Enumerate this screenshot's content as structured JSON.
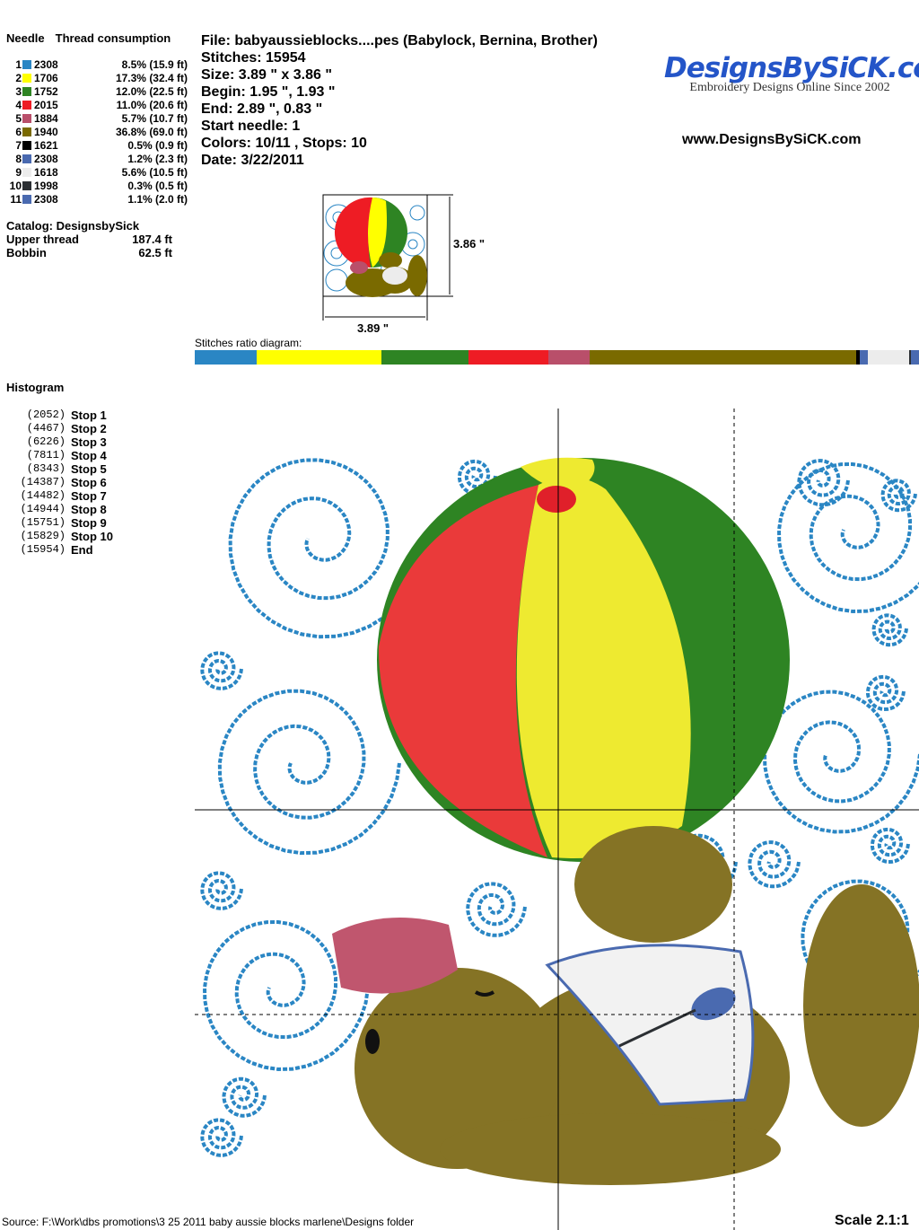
{
  "needles": {
    "header_needle": "Needle",
    "header_thread": "Thread consumption",
    "rows": [
      {
        "num": "1",
        "color": "#2a86c4",
        "code": "2308",
        "consumption": "8.5% (15.9 ft)",
        "pct": 8.5
      },
      {
        "num": "2",
        "color": "#ffff00",
        "code": "1706",
        "consumption": "17.3% (32.4 ft)",
        "pct": 17.3
      },
      {
        "num": "3",
        "color": "#2e8423",
        "code": "1752",
        "consumption": "12.0% (22.5 ft)",
        "pct": 12.0
      },
      {
        "num": "4",
        "color": "#ee1c24",
        "code": "2015",
        "consumption": "11.0% (20.6 ft)",
        "pct": 11.0
      },
      {
        "num": "5",
        "color": "#b94f6a",
        "code": "1884",
        "consumption": "5.7% (10.7 ft)",
        "pct": 5.7
      },
      {
        "num": "6",
        "color": "#7a6a00",
        "code": "1940",
        "consumption": "36.8% (69.0 ft)",
        "pct": 36.8
      },
      {
        "num": "7",
        "color": "#000000",
        "code": "1621",
        "consumption": "0.5% (0.9 ft)",
        "pct": 0.5
      },
      {
        "num": "8",
        "color": "#4a6ab0",
        "code": "2308",
        "consumption": "1.2% (2.3 ft)",
        "pct": 1.2
      },
      {
        "num": "9",
        "color": "#ececec",
        "code": "1618",
        "consumption": "5.6% (10.5 ft)",
        "pct": 5.6
      },
      {
        "num": "10",
        "color": "#2b2f33",
        "code": "1998",
        "consumption": "0.3% (0.5 ft)",
        "pct": 0.3
      },
      {
        "num": "11",
        "color": "#4a6ab0",
        "code": "2308",
        "consumption": "1.1% (2.0 ft)",
        "pct": 1.1
      }
    ]
  },
  "catalog": {
    "catalog_label": "Catalog: DesignsbySick",
    "upper_label": "Upper thread",
    "upper_value": "187.4 ft",
    "bobbin_label": "Bobbin",
    "bobbin_value": "62.5 ft"
  },
  "info": {
    "file": "File: babyaussieblocks....pes  (Babylock, Bernina, Brother)",
    "stitches": "Stitches: 15954",
    "size": "Size: 3.89 \" x 3.86 \"",
    "begin": "Begin: 1.95 \", 1.93 \"",
    "end": "End: 2.89 \", 0.83 \"",
    "start_needle": "Start needle: 1",
    "colors": "Colors: 10/11 , Stops: 10",
    "date": "Date: 3/22/2011"
  },
  "logo": {
    "brand": "DesignsBySiCK.com",
    "tagline": "Embroidery Designs Online Since 2002",
    "url": "www.DesignsBySiCK.com"
  },
  "thumbnail": {
    "height_label": "3.86 \"",
    "width_label": "3.89 \""
  },
  "ratio": {
    "label": "Stitches ratio diagram:"
  },
  "histogram": {
    "title": "Histogram",
    "rows": [
      {
        "count": "(2052)",
        "label": "Stop 1"
      },
      {
        "count": "(4467)",
        "label": "Stop 2"
      },
      {
        "count": "(6226)",
        "label": "Stop 3"
      },
      {
        "count": "(7811)",
        "label": "Stop 4"
      },
      {
        "count": "(8343)",
        "label": "Stop 5"
      },
      {
        "count": "(14387)",
        "label": "Stop 6"
      },
      {
        "count": "(14482)",
        "label": "Stop 7"
      },
      {
        "count": "(14944)",
        "label": "Stop 8"
      },
      {
        "count": "(15751)",
        "label": "Stop 9"
      },
      {
        "count": "(15829)",
        "label": "Stop 10"
      },
      {
        "count": "(15954)",
        "label": "End"
      }
    ]
  },
  "footer": {
    "source": "Source: F:\\Work\\dbs promotions\\3 25 2011 baby aussie blocks marlene\\Designs folder",
    "scale": "Scale 2.1:1"
  }
}
